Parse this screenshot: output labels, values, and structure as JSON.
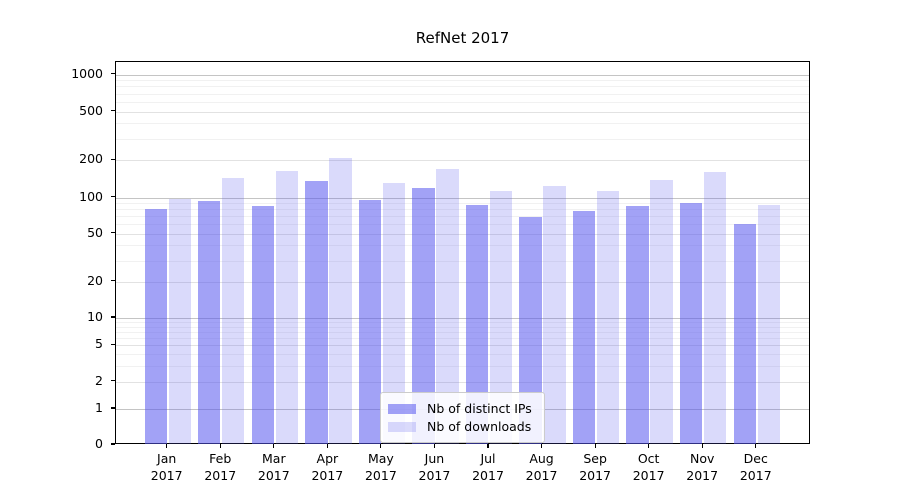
{
  "title": "RefNet 2017",
  "chart_data": {
    "type": "bar",
    "title": "RefNet 2017",
    "y_scale": "symlog",
    "grid": true,
    "legend_position": "lower center",
    "categories": [
      "Jan",
      "Feb",
      "Mar",
      "Apr",
      "May",
      "Jun",
      "Jul",
      "Aug",
      "Sep",
      "Oct",
      "Nov",
      "Dec"
    ],
    "year_label": "2017",
    "series": [
      {
        "name": "Nb of distinct IPs",
        "color": "rgba(85,85,238,0.55)",
        "values": [
          80,
          94,
          85,
          136,
          96,
          119,
          87,
          69,
          78,
          85,
          90,
          60
        ]
      },
      {
        "name": "Nb of downloads",
        "color": "rgba(85,85,238,0.22)",
        "values": [
          97,
          145,
          165,
          210,
          132,
          170,
          114,
          125,
          113,
          138,
          160,
          87
        ]
      }
    ],
    "y_ticks": [
      0,
      1,
      2,
      5,
      10,
      20,
      50,
      100,
      200,
      500,
      1000
    ],
    "ylim": [
      0,
      1260
    ]
  },
  "colors": {
    "grid_decade": "#c4c4c4",
    "grid_labeled": "#e2e2e2",
    "grid_minor": "#f1f1f1",
    "spine": "#000000"
  }
}
